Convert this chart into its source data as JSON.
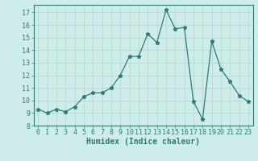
{
  "x": [
    0,
    1,
    2,
    3,
    4,
    5,
    6,
    7,
    8,
    9,
    10,
    11,
    12,
    13,
    14,
    15,
    16,
    17,
    18,
    19,
    20,
    21,
    22,
    23
  ],
  "y": [
    9.3,
    9.0,
    9.3,
    9.1,
    9.5,
    10.3,
    10.6,
    10.6,
    11.0,
    12.0,
    13.5,
    13.5,
    15.3,
    14.6,
    17.2,
    15.7,
    15.8,
    9.9,
    8.5,
    14.7,
    12.5,
    11.5,
    10.4,
    9.9
  ],
  "line_color": "#2e7d70",
  "marker": "*",
  "marker_size": 3.5,
  "bg_color": "#cdecea",
  "grid_color": "#b8d8d4",
  "xlabel": "Humidex (Indice chaleur)",
  "xlim": [
    -0.5,
    23.5
  ],
  "ylim": [
    8,
    17.6
  ],
  "yticks": [
    8,
    9,
    10,
    11,
    12,
    13,
    14,
    15,
    16,
    17
  ],
  "xticks": [
    0,
    1,
    2,
    3,
    4,
    5,
    6,
    7,
    8,
    9,
    10,
    11,
    12,
    13,
    14,
    15,
    16,
    17,
    18,
    19,
    20,
    21,
    22,
    23
  ],
  "font_color": "#2e7d70",
  "tick_fontsize": 6,
  "xlabel_fontsize": 7
}
